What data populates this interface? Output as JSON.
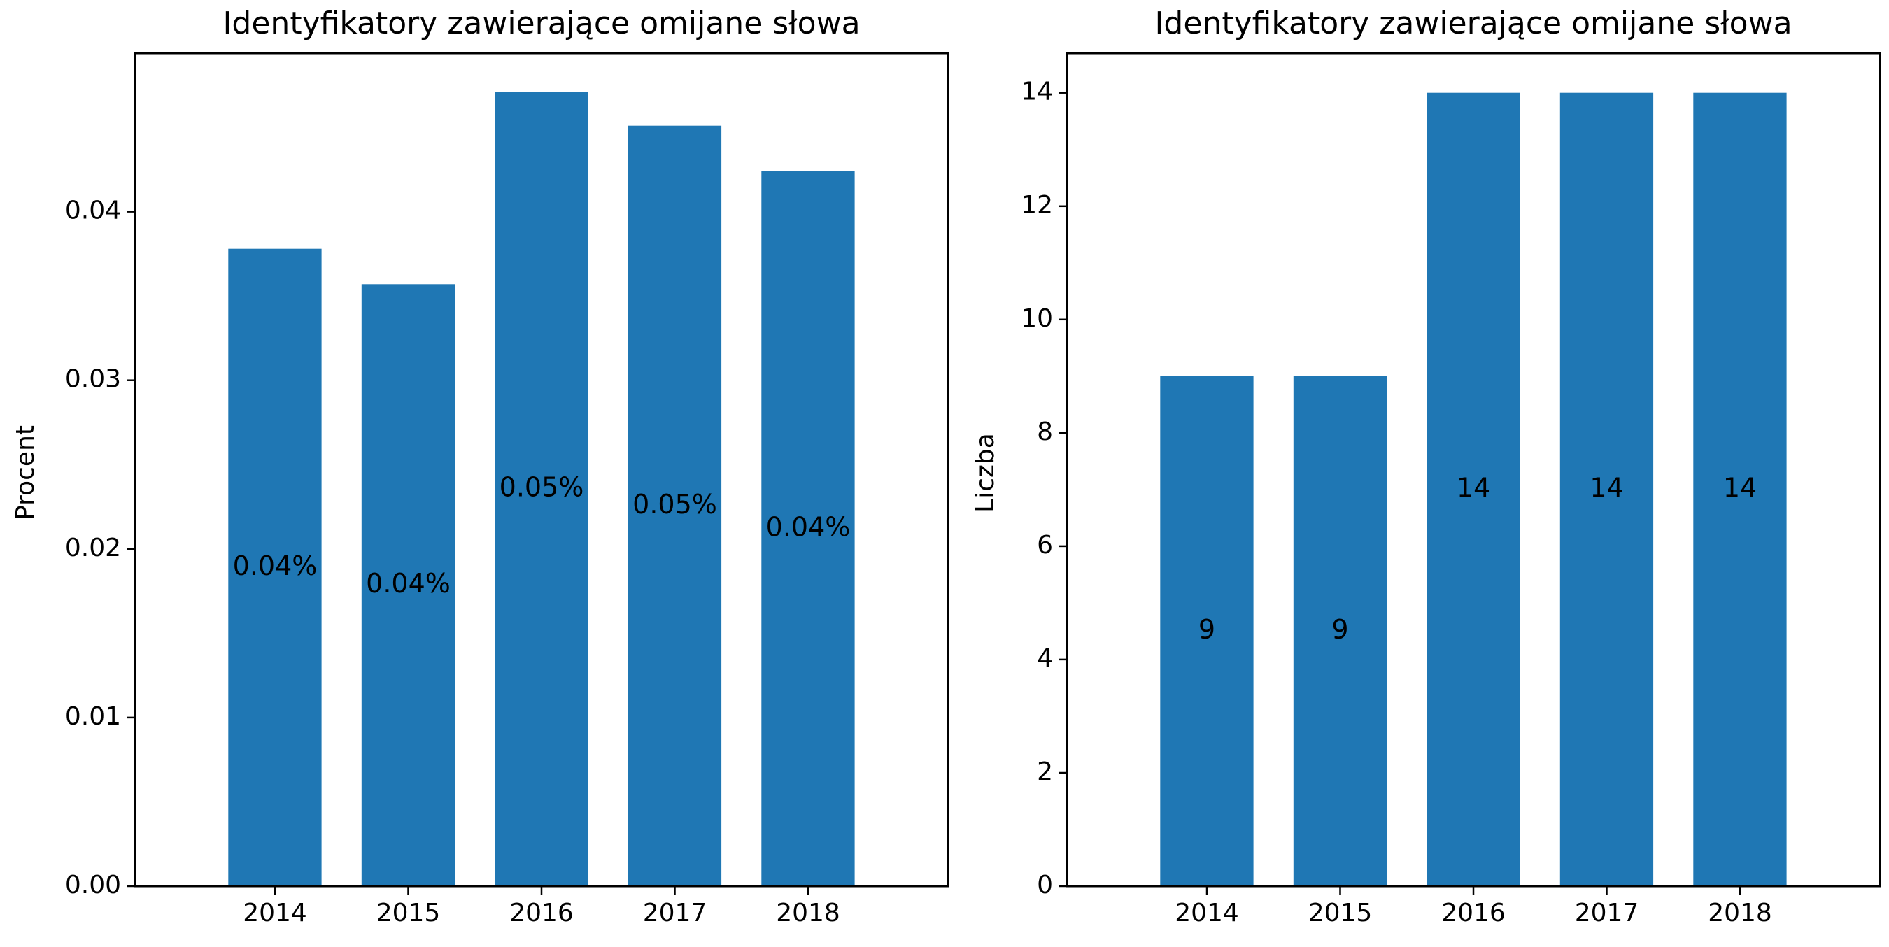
{
  "chart_data": [
    {
      "type": "bar",
      "title": "Identyfikatory zawierające omijane słowa",
      "xlabel": "",
      "ylabel": "Procent",
      "categories": [
        "2014",
        "2015",
        "2016",
        "2017",
        "2018"
      ],
      "values": [
        0.0378,
        0.0357,
        0.0471,
        0.0451,
        0.0424
      ],
      "bar_labels": [
        "0.04%",
        "0.04%",
        "0.05%",
        "0.05%",
        "0.04%"
      ],
      "ylim": [
        0,
        0.0494
      ],
      "yticks": [
        0,
        0.01,
        0.02,
        0.03,
        0.04
      ],
      "ytick_labels": [
        "0.00",
        "0.01",
        "0.02",
        "0.03",
        "0.04"
      ],
      "grid": false,
      "color": "#1f77b4"
    },
    {
      "type": "bar",
      "title": "Identyfikatory zawierające omijane słowa",
      "xlabel": "",
      "ylabel": "Liczba",
      "categories": [
        "2014",
        "2015",
        "2016",
        "2017",
        "2018"
      ],
      "values": [
        9,
        9,
        14,
        14,
        14
      ],
      "bar_labels": [
        "9",
        "9",
        "14",
        "14",
        "14"
      ],
      "ylim": [
        0,
        14.7
      ],
      "yticks": [
        0,
        2,
        4,
        6,
        8,
        10,
        12,
        14
      ],
      "ytick_labels": [
        "0",
        "2",
        "4",
        "6",
        "8",
        "10",
        "12",
        "14"
      ],
      "grid": false,
      "color": "#1f77b4"
    }
  ]
}
